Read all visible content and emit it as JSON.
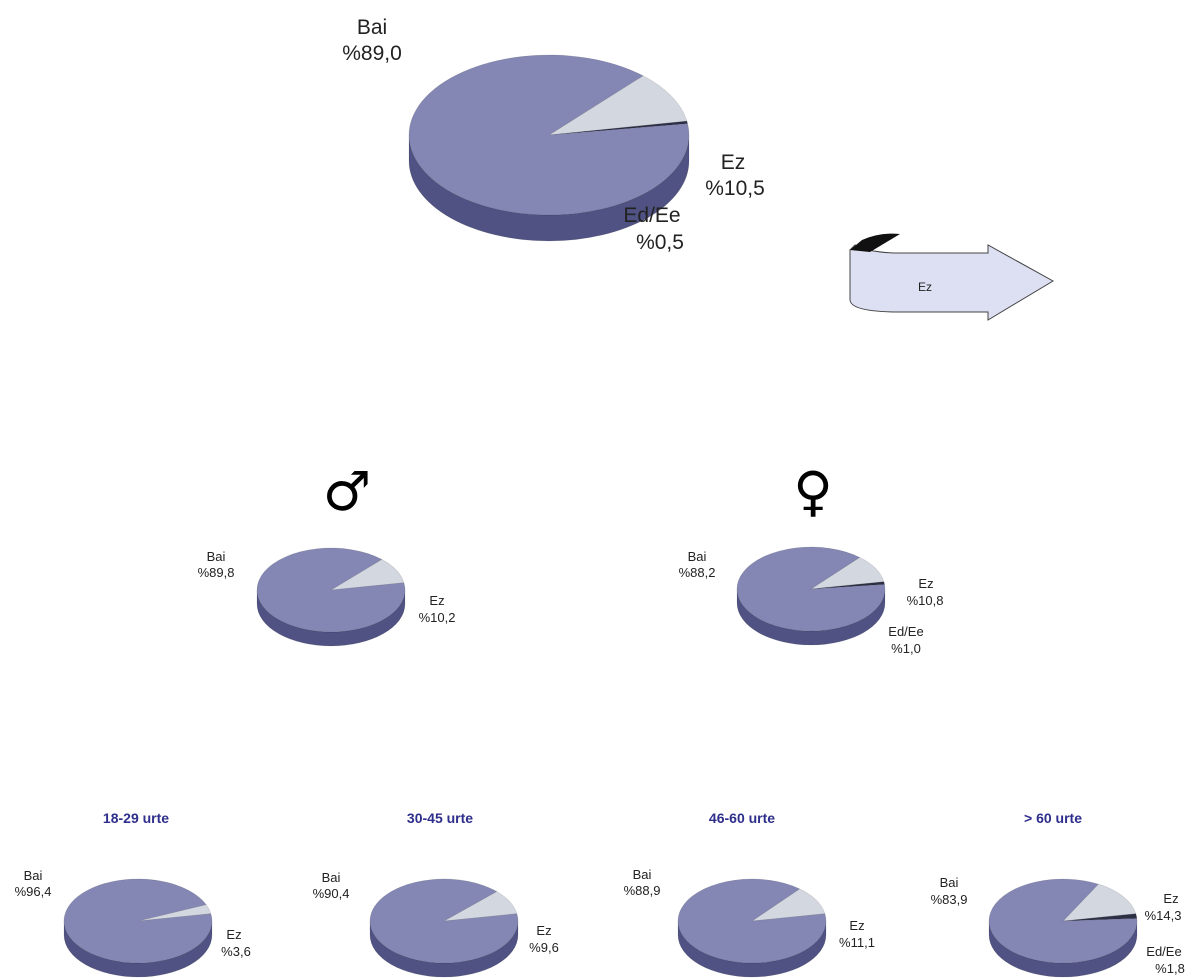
{
  "colors": {
    "bai_top": "#8487b3",
    "bai_side": "#4f5282",
    "ez_top": "#d3d7e0",
    "ez_side": "#9aa0ad",
    "edee": "#2d2f45",
    "title": "#2e2e8c",
    "arrow_fill": "#dde0f2",
    "arrow_stroke": "#444444"
  },
  "symbols": {
    "male": "♂",
    "female": "♀"
  },
  "arrow": {
    "label": "Ez"
  },
  "chart_data": [
    {
      "type": "pie",
      "id": "total",
      "slices": [
        {
          "label": "Bai",
          "pct_text": "%89,0",
          "value": 89.0
        },
        {
          "label": "Ez",
          "pct_text": "%10,5",
          "value": 10.5
        },
        {
          "label": "Ed/Ee",
          "pct_text": "%0,5",
          "value": 0.5
        }
      ]
    },
    {
      "type": "pie",
      "id": "male",
      "slices": [
        {
          "label": "Bai",
          "pct_text": "%89,8",
          "value": 89.8
        },
        {
          "label": "Ez",
          "pct_text": "%10,2",
          "value": 10.2
        }
      ]
    },
    {
      "type": "pie",
      "id": "female",
      "slices": [
        {
          "label": "Bai",
          "pct_text": "%88,2",
          "value": 88.2
        },
        {
          "label": "Ez",
          "pct_text": "%10,8",
          "value": 10.8
        },
        {
          "label": "Ed/Ee",
          "pct_text": "%1,0",
          "value": 1.0
        }
      ]
    },
    {
      "type": "pie",
      "id": "age-18-29",
      "title": "18-29 urte",
      "slices": [
        {
          "label": "Bai",
          "pct_text": "%96,4",
          "value": 96.4
        },
        {
          "label": "Ez",
          "pct_text": "%3,6",
          "value": 3.6
        }
      ]
    },
    {
      "type": "pie",
      "id": "age-30-45",
      "title": "30-45 urte",
      "slices": [
        {
          "label": "Bai",
          "pct_text": "%90,4",
          "value": 90.4
        },
        {
          "label": "Ez",
          "pct_text": "%9,6",
          "value": 9.6
        }
      ]
    },
    {
      "type": "pie",
      "id": "age-46-60",
      "title": "46-60 urte",
      "slices": [
        {
          "label": "Bai",
          "pct_text": "%88,9",
          "value": 88.9
        },
        {
          "label": "Ez",
          "pct_text": "%11,1",
          "value": 11.1
        }
      ]
    },
    {
      "type": "pie",
      "id": "age-60-plus",
      "title": "> 60 urte",
      "slices": [
        {
          "label": "Bai",
          "pct_text": "%83,9",
          "value": 83.9
        },
        {
          "label": "Ez",
          "pct_text": "%14,3",
          "value": 14.3
        },
        {
          "label": "Ed/Ee",
          "pct_text": "%1,8",
          "value": 1.8
        }
      ]
    }
  ]
}
